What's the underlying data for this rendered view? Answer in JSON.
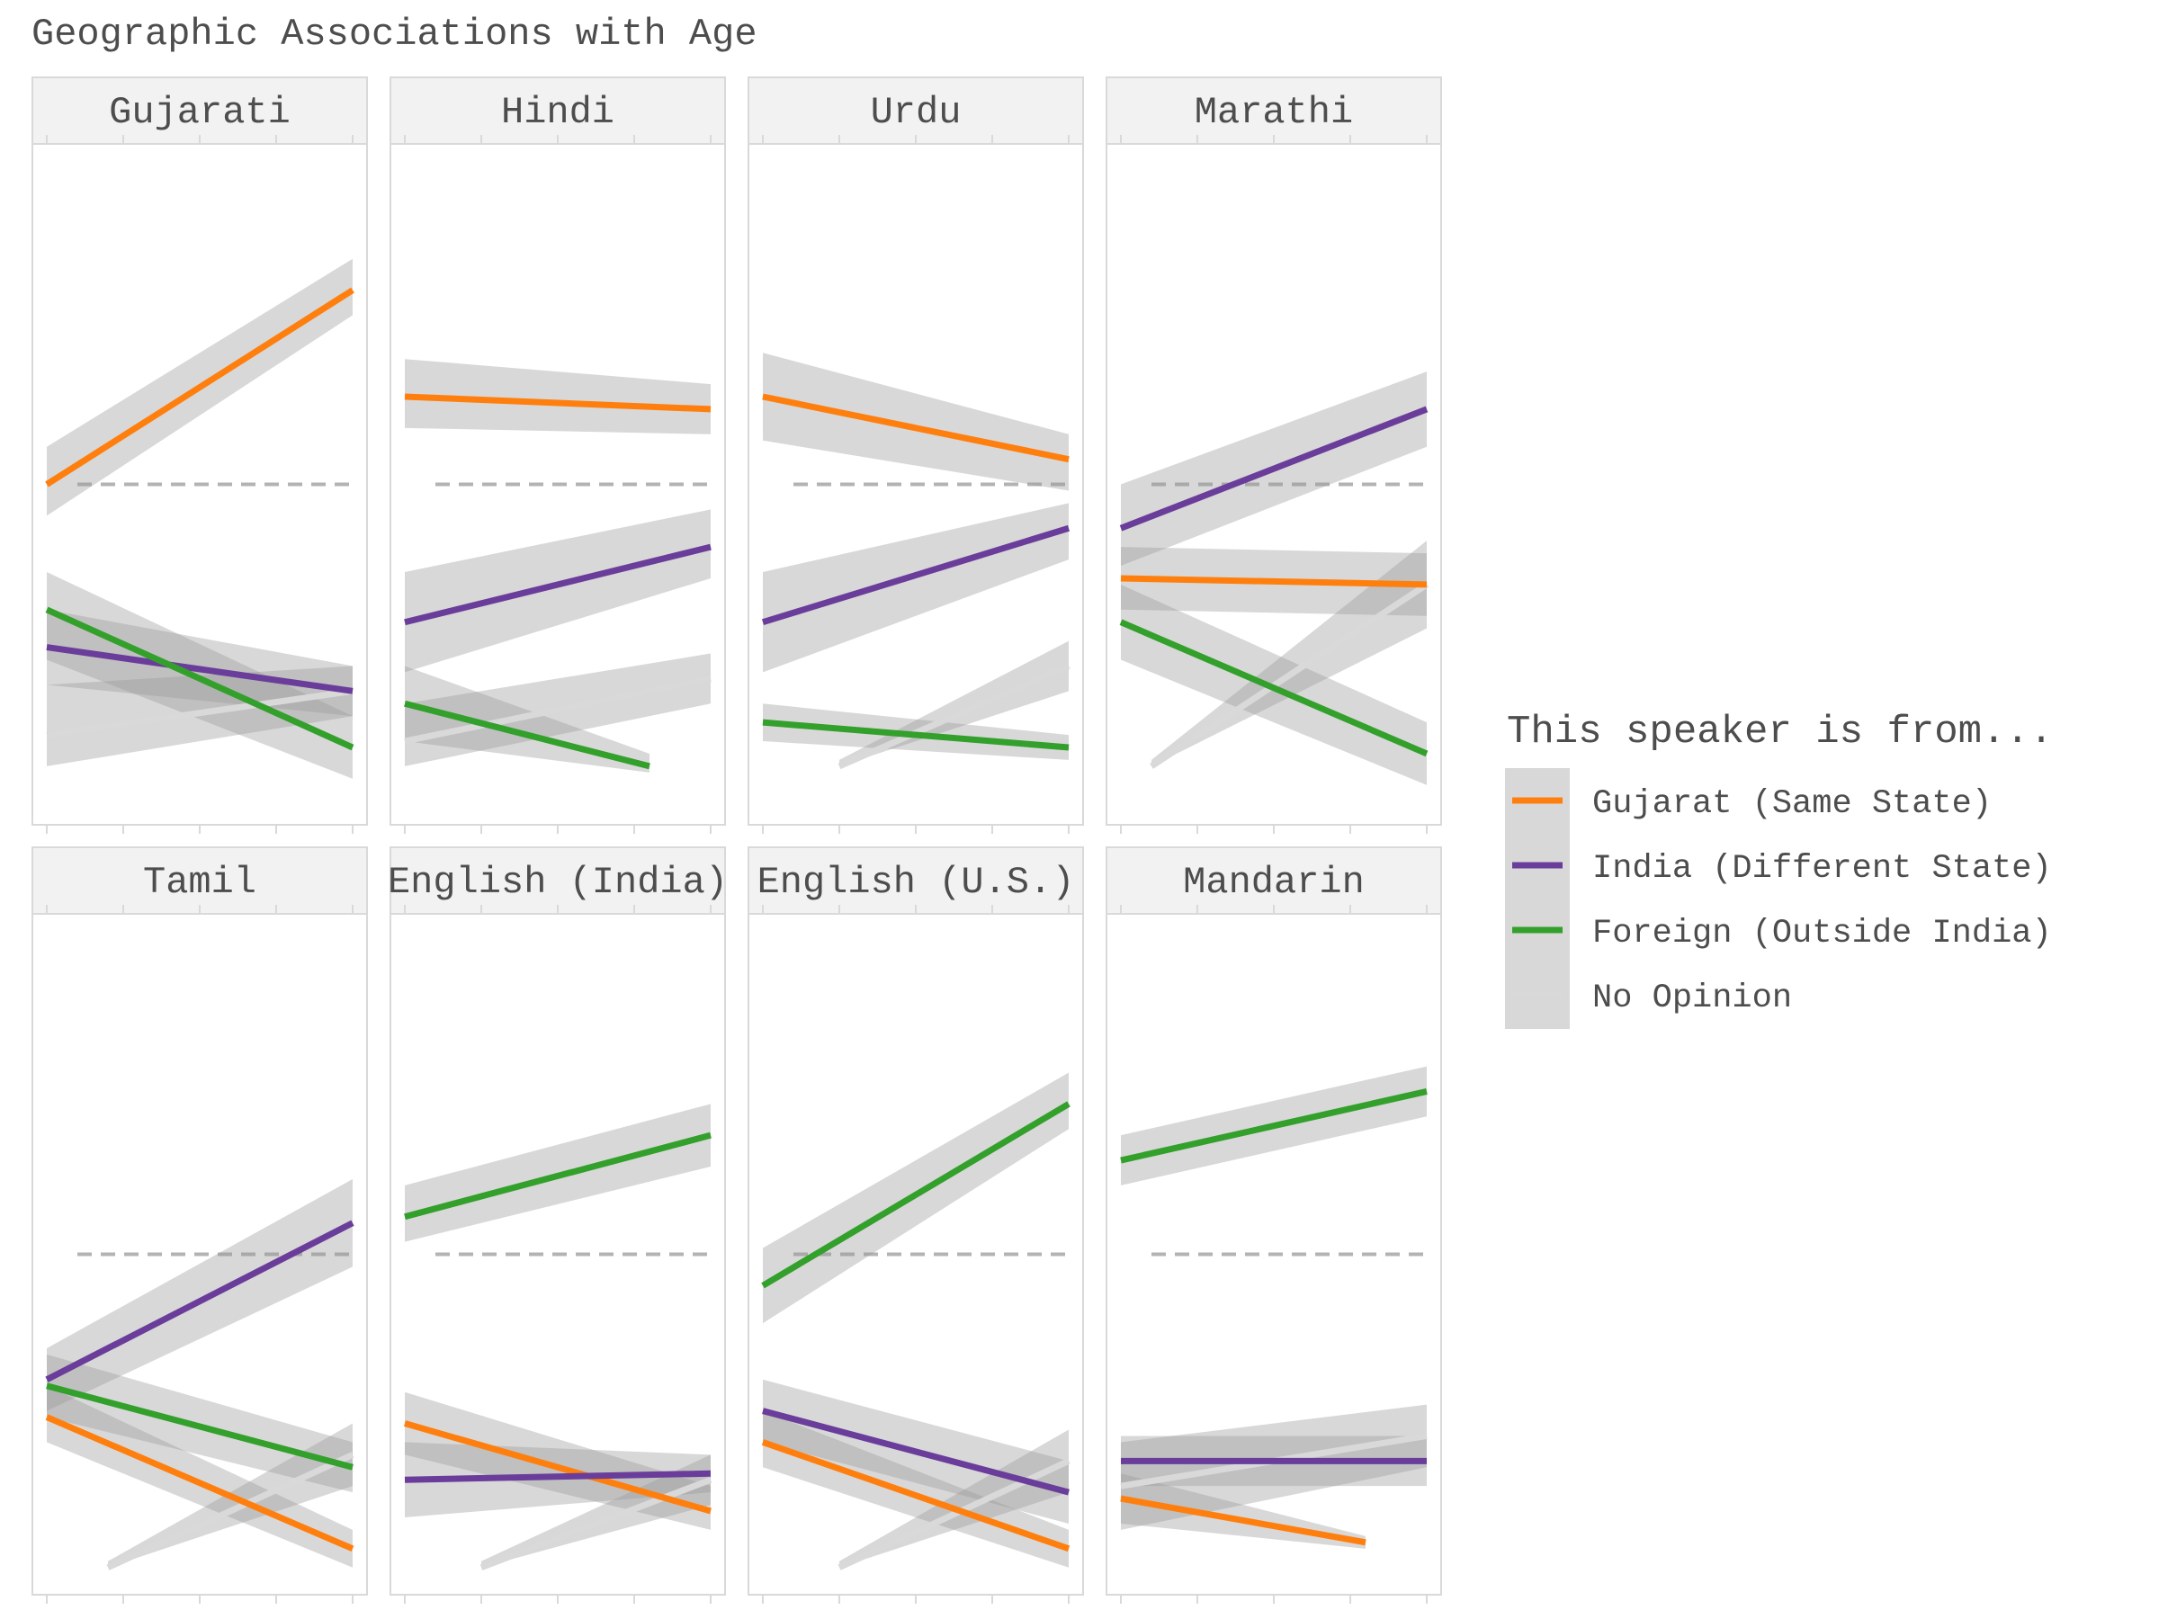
{
  "chart_data": {
    "type": "line",
    "title": "Geographic Associations with Age",
    "xlabel": "",
    "ylabel": "",
    "xlim": [
      0,
      1
    ],
    "ylim": [
      0,
      1
    ],
    "reference_line": 0.5,
    "grid": false,
    "legend": {
      "title": "This speaker is from...",
      "placement": "right"
    },
    "series": [
      {
        "name": "Gujarat (Same State)",
        "color": "#ff7f0e"
      },
      {
        "name": "India (Different State)",
        "color": "#6a3d9a"
      },
      {
        "name": "Foreign (Outside India)",
        "color": "#33a02c"
      },
      {
        "name": "No Opinion",
        "color": "#d9d9d9"
      }
    ],
    "panels": [
      {
        "name": "Gujarati",
        "lines": [
          {
            "series": 0,
            "x": [
              0,
              1
            ],
            "y": [
              0.5,
              0.81
            ],
            "band": [
              [
                0.45,
                0.56
              ],
              [
                0.77,
                0.86
              ]
            ]
          },
          {
            "series": 1,
            "x": [
              0,
              1
            ],
            "y": [
              0.24,
              0.17
            ],
            "band": [
              [
                0.18,
                0.3
              ],
              [
                0.13,
                0.21
              ]
            ]
          },
          {
            "series": 2,
            "x": [
              0,
              1
            ],
            "y": [
              0.3,
              0.08
            ],
            "band": [
              [
                0.22,
                0.36
              ],
              [
                0.03,
                0.13
              ]
            ]
          },
          {
            "series": 3,
            "x": [
              0,
              1
            ],
            "y": [
              0.1,
              0.17
            ],
            "band": [
              [
                0.05,
                0.18
              ],
              [
                0.13,
                0.21
              ]
            ]
          }
        ]
      },
      {
        "name": "Hindi",
        "lines": [
          {
            "series": 0,
            "x": [
              0,
              1
            ],
            "y": [
              0.64,
              0.62
            ],
            "band": [
              [
                0.59,
                0.7
              ],
              [
                0.58,
                0.66
              ]
            ]
          },
          {
            "series": 1,
            "x": [
              0,
              1
            ],
            "y": [
              0.28,
              0.4
            ],
            "band": [
              [
                0.2,
                0.36
              ],
              [
                0.35,
                0.46
              ]
            ]
          },
          {
            "series": 2,
            "x": [
              0,
              0.8
            ],
            "y": [
              0.15,
              0.05
            ],
            "band": [
              [
                0.09,
                0.21
              ],
              [
                0.04,
                0.07
              ]
            ]
          },
          {
            "series": 3,
            "x": [
              0,
              1
            ],
            "y": [
              0.09,
              0.19
            ],
            "band": [
              [
                0.05,
                0.15
              ],
              [
                0.15,
                0.23
              ]
            ]
          }
        ]
      },
      {
        "name": "Urdu",
        "lines": [
          {
            "series": 0,
            "x": [
              0,
              1
            ],
            "y": [
              0.64,
              0.54
            ],
            "band": [
              [
                0.57,
                0.71
              ],
              [
                0.49,
                0.58
              ]
            ]
          },
          {
            "series": 1,
            "x": [
              0,
              1
            ],
            "y": [
              0.28,
              0.43
            ],
            "band": [
              [
                0.2,
                0.36
              ],
              [
                0.38,
                0.47
              ]
            ]
          },
          {
            "series": 2,
            "x": [
              0,
              1
            ],
            "y": [
              0.12,
              0.08
            ],
            "band": [
              [
                0.09,
                0.15
              ],
              [
                0.06,
                0.1
              ]
            ]
          },
          {
            "series": 3,
            "x": [
              0.25,
              1
            ],
            "y": [
              0.05,
              0.21
            ],
            "band": [
              [
                0.05,
                0.06
              ],
              [
                0.17,
                0.25
              ]
            ]
          }
        ]
      },
      {
        "name": "Marathi",
        "lines": [
          {
            "series": 0,
            "x": [
              0,
              1
            ],
            "y": [
              0.35,
              0.34
            ],
            "band": [
              [
                0.3,
                0.4
              ],
              [
                0.29,
                0.39
              ]
            ]
          },
          {
            "series": 1,
            "x": [
              0,
              1
            ],
            "y": [
              0.43,
              0.62
            ],
            "band": [
              [
                0.37,
                0.5
              ],
              [
                0.56,
                0.68
              ]
            ]
          },
          {
            "series": 2,
            "x": [
              0,
              1
            ],
            "y": [
              0.28,
              0.07
            ],
            "band": [
              [
                0.22,
                0.34
              ],
              [
                0.02,
                0.12
              ]
            ]
          },
          {
            "series": 3,
            "x": [
              0.1,
              1
            ],
            "y": [
              0.05,
              0.34
            ],
            "band": [
              [
                0.05,
                0.06
              ],
              [
                0.27,
                0.41
              ]
            ]
          }
        ]
      },
      {
        "name": "Tamil",
        "lines": [
          {
            "series": 0,
            "x": [
              0,
              1
            ],
            "y": [
              0.24,
              0.03
            ],
            "band": [
              [
                0.2,
                0.29
              ],
              [
                0.0,
                0.06
              ]
            ]
          },
          {
            "series": 1,
            "x": [
              0,
              1
            ],
            "y": [
              0.3,
              0.55
            ],
            "band": [
              [
                0.25,
                0.35
              ],
              [
                0.48,
                0.62
              ]
            ]
          },
          {
            "series": 2,
            "x": [
              0,
              1
            ],
            "y": [
              0.29,
              0.16
            ],
            "band": [
              [
                0.24,
                0.34
              ],
              [
                0.12,
                0.2
              ]
            ]
          },
          {
            "series": 3,
            "x": [
              0.2,
              1
            ],
            "y": [
              0.0,
              0.18
            ],
            "band": [
              [
                0.0,
                0.01
              ],
              [
                0.13,
                0.23
              ]
            ]
          }
        ]
      },
      {
        "name": "English (India)",
        "lines": [
          {
            "series": 0,
            "x": [
              0,
              1
            ],
            "y": [
              0.23,
              0.09
            ],
            "band": [
              [
                0.18,
                0.28
              ],
              [
                0.06,
                0.13
              ]
            ]
          },
          {
            "series": 1,
            "x": [
              0,
              1
            ],
            "y": [
              0.14,
              0.15
            ],
            "band": [
              [
                0.08,
                0.2
              ],
              [
                0.12,
                0.18
              ]
            ]
          },
          {
            "series": 2,
            "x": [
              0,
              1
            ],
            "y": [
              0.56,
              0.69
            ],
            "band": [
              [
                0.52,
                0.61
              ],
              [
                0.64,
                0.74
              ]
            ]
          },
          {
            "series": 3,
            "x": [
              0.25,
              1
            ],
            "y": [
              0.0,
              0.14
            ],
            "band": [
              [
                0.0,
                0.01
              ],
              [
                0.1,
                0.18
              ]
            ]
          }
        ]
      },
      {
        "name": "English (U.S.)",
        "lines": [
          {
            "series": 0,
            "x": [
              0,
              1
            ],
            "y": [
              0.2,
              0.03
            ],
            "band": [
              [
                0.16,
                0.25
              ],
              [
                0.0,
                0.06
              ]
            ]
          },
          {
            "series": 1,
            "x": [
              0,
              1
            ],
            "y": [
              0.25,
              0.12
            ],
            "band": [
              [
                0.2,
                0.3
              ],
              [
                0.07,
                0.17
              ]
            ]
          },
          {
            "series": 2,
            "x": [
              0,
              1
            ],
            "y": [
              0.45,
              0.74
            ],
            "band": [
              [
                0.39,
                0.51
              ],
              [
                0.7,
                0.79
              ]
            ]
          },
          {
            "series": 3,
            "x": [
              0.25,
              1
            ],
            "y": [
              0.0,
              0.17
            ],
            "band": [
              [
                0.0,
                0.01
              ],
              [
                0.12,
                0.22
              ]
            ]
          }
        ]
      },
      {
        "name": "Mandarin",
        "lines": [
          {
            "series": 0,
            "x": [
              0,
              0.8
            ],
            "y": [
              0.11,
              0.04
            ],
            "band": [
              [
                0.07,
                0.15
              ],
              [
                0.03,
                0.05
              ]
            ]
          },
          {
            "series": 1,
            "x": [
              0,
              1
            ],
            "y": [
              0.17,
              0.17
            ],
            "band": [
              [
                0.13,
                0.21
              ],
              [
                0.13,
                0.21
              ]
            ]
          },
          {
            "series": 2,
            "x": [
              0,
              1
            ],
            "y": [
              0.65,
              0.76
            ],
            "band": [
              [
                0.61,
                0.69
              ],
              [
                0.72,
                0.8
              ]
            ]
          },
          {
            "series": 3,
            "x": [
              0,
              1
            ],
            "y": [
              0.13,
              0.21
            ],
            "band": [
              [
                0.06,
                0.2
              ],
              [
                0.16,
                0.26
              ]
            ]
          }
        ]
      }
    ]
  }
}
